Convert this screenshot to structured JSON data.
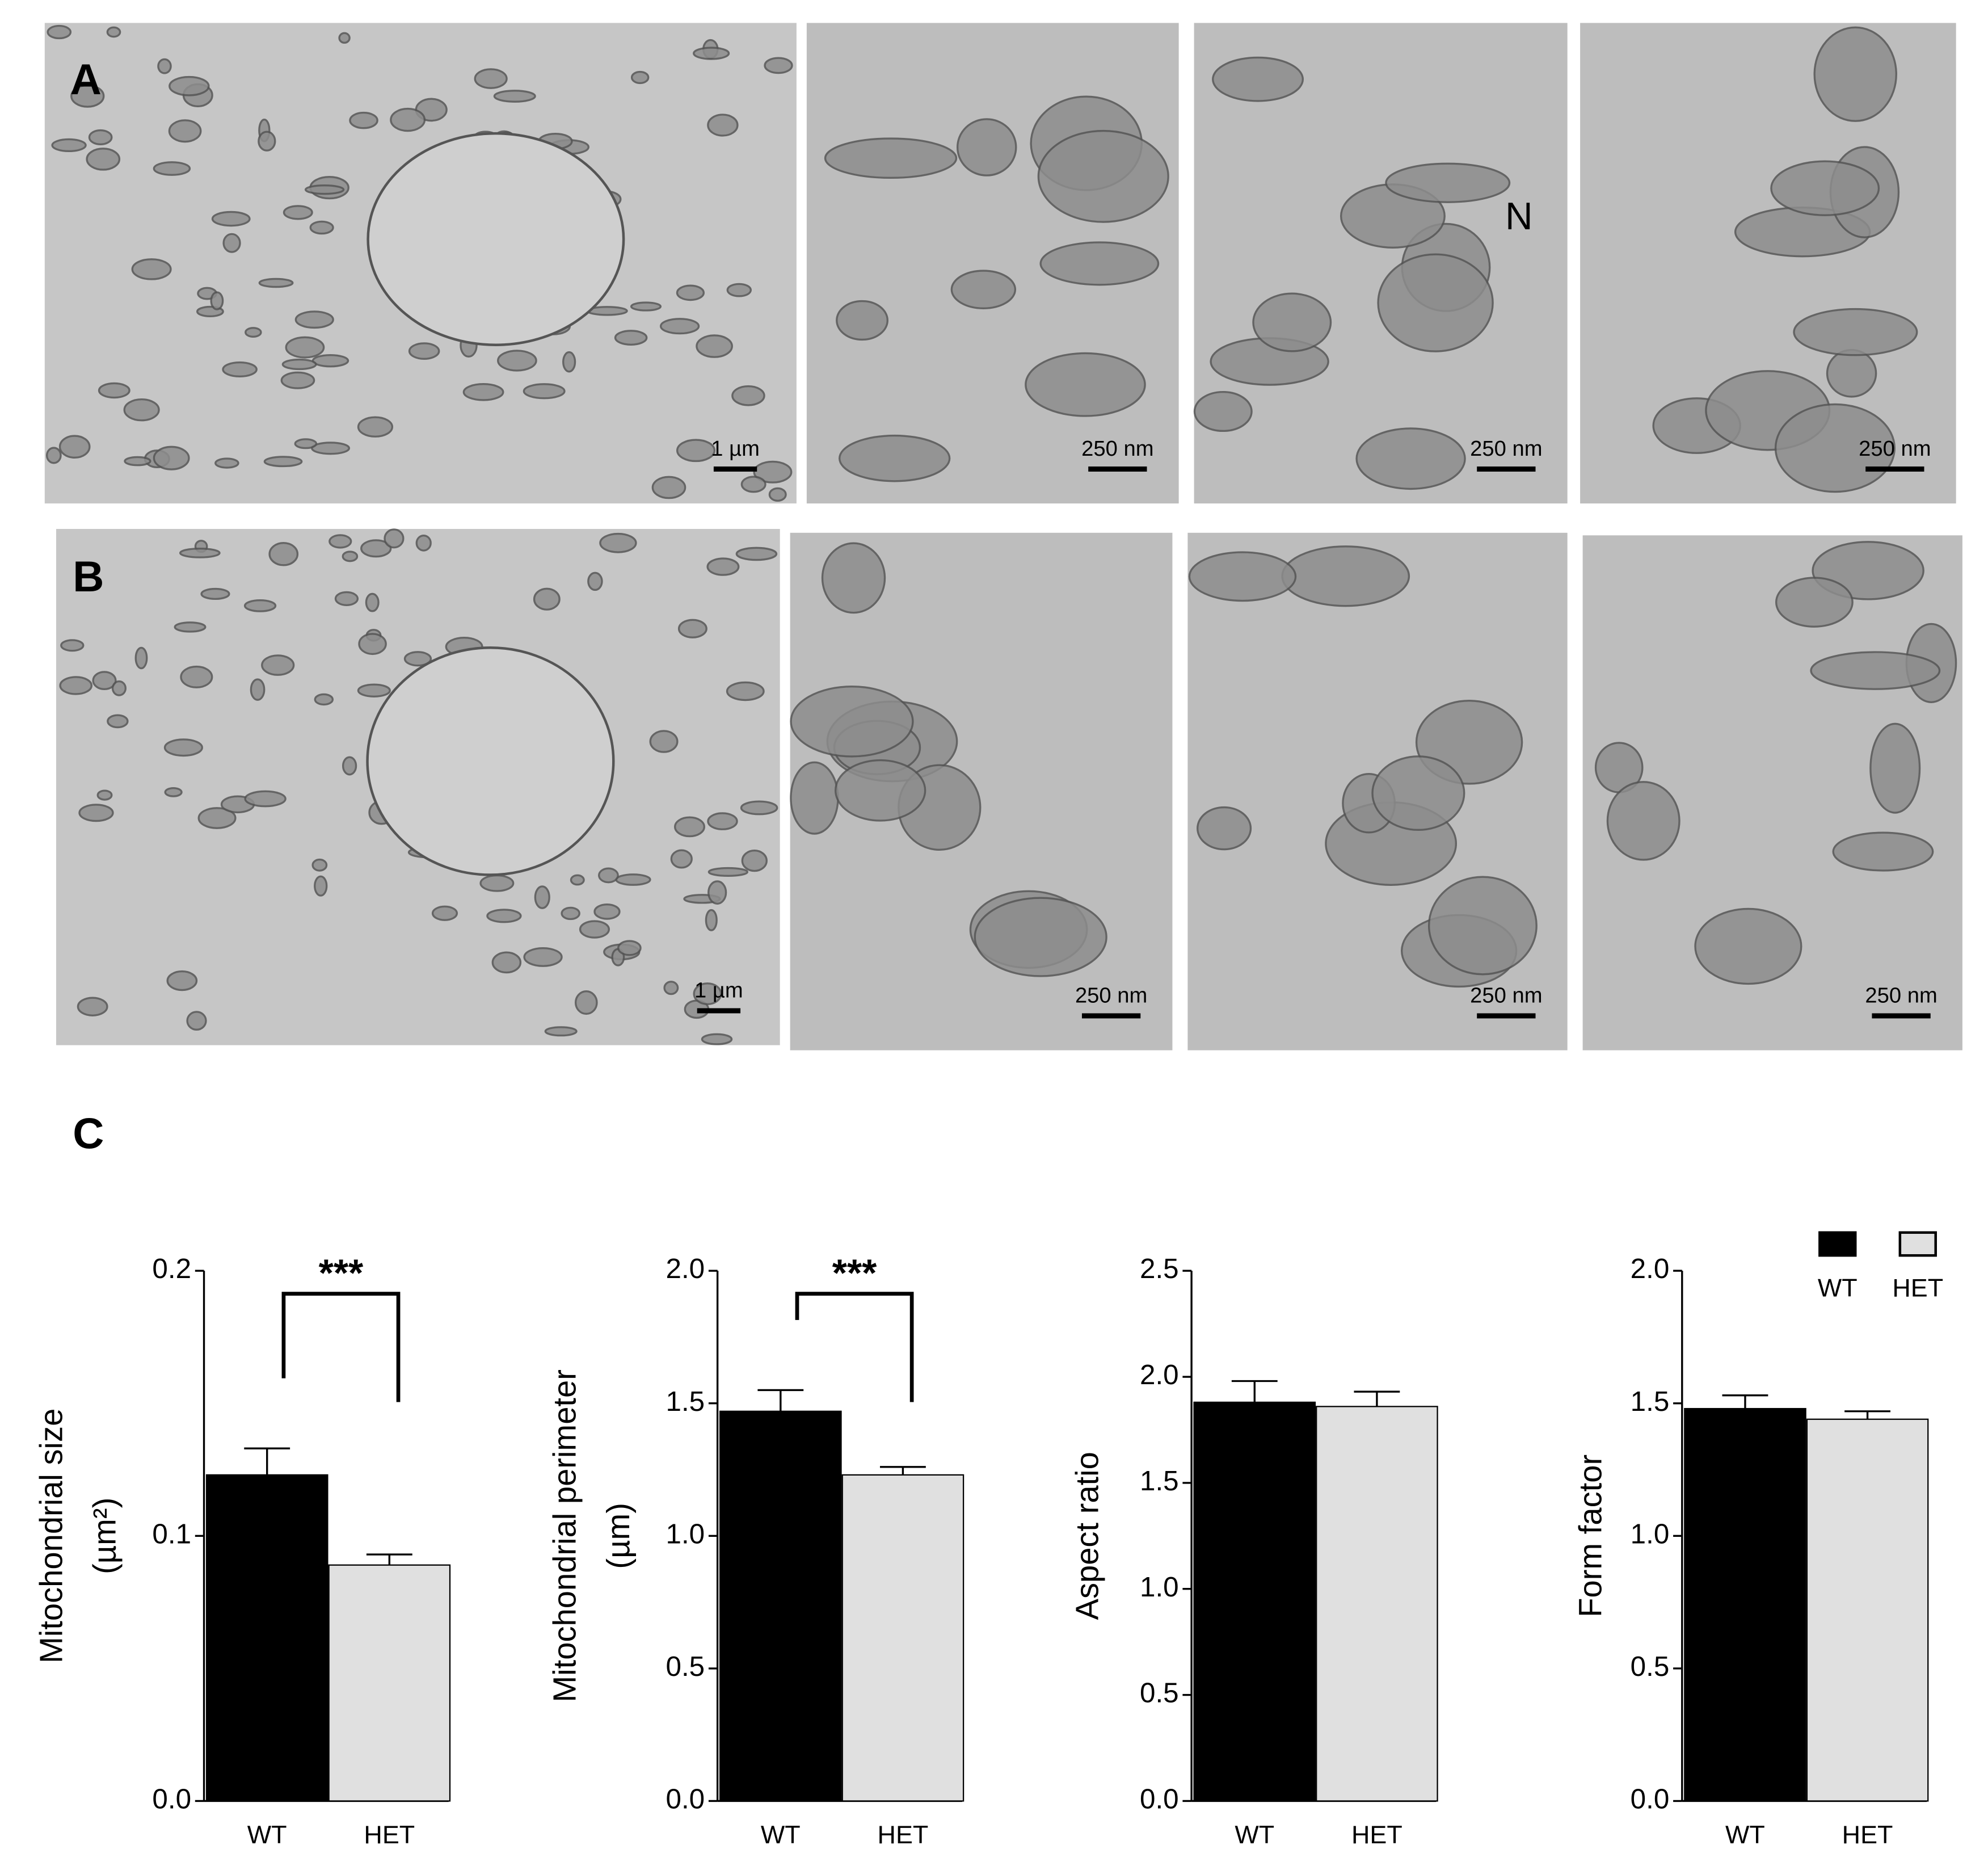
{
  "figure": {
    "panel_a": {
      "label": "A",
      "scale_bars": [
        "1 µm",
        "250 nm",
        "250 nm",
        "250 nm"
      ],
      "nucleus_label": "N"
    },
    "panel_b": {
      "label": "B",
      "scale_bars": [
        "1 µm",
        "250 nm",
        "250 nm",
        "250 nm"
      ]
    },
    "panel_c": {
      "label": "C"
    }
  },
  "chart_data": [
    {
      "type": "bar",
      "ylabel": [
        "Mitochondrial size",
        "(µm²)"
      ],
      "categories": [
        "WT",
        "HET"
      ],
      "values": [
        0.123,
        0.089
      ],
      "errors": [
        0.01,
        0.004
      ],
      "colors": [
        "#000000",
        "#e0e0e0"
      ],
      "ylim": [
        0,
        0.2
      ],
      "yticks": [
        {
          "value": 0,
          "label": "0.0"
        },
        0.1,
        0.2
      ],
      "significance": "***"
    },
    {
      "type": "bar",
      "ylabel": [
        "Mitochondrial perimeter",
        "(µm)"
      ],
      "categories": [
        "WT",
        "HET"
      ],
      "values": [
        1.47,
        1.23
      ],
      "errors": [
        0.08,
        0.03
      ],
      "colors": [
        "#000000",
        "#e0e0e0"
      ],
      "ylim": [
        0,
        2
      ],
      "yticks": [
        {
          "value": 0,
          "label": "0.0"
        },
        0.5,
        {
          "value": 1,
          "label": "1.0"
        },
        1.5,
        {
          "value": 2,
          "label": "2.0"
        }
      ],
      "significance": "***"
    },
    {
      "type": "bar",
      "ylabel": [
        "Aspect ratio"
      ],
      "categories": [
        "WT",
        "HET"
      ],
      "values": [
        1.88,
        1.86
      ],
      "errors": [
        0.1,
        0.07
      ],
      "colors": [
        "#000000",
        "#e0e0e0"
      ],
      "ylim": [
        0,
        2.5
      ],
      "yticks": [
        {
          "value": 0,
          "label": "0.0"
        },
        0.5,
        {
          "value": 1,
          "label": "1.0"
        },
        1.5,
        {
          "value": 2,
          "label": "2.0"
        },
        2.5
      ]
    },
    {
      "type": "bar",
      "ylabel": [
        "Form factor"
      ],
      "categories": [
        "WT",
        "HET"
      ],
      "values": [
        1.48,
        1.44
      ],
      "errors": [
        0.05,
        0.03
      ],
      "colors": [
        "#000000",
        "#e0e0e0"
      ],
      "ylim": [
        0,
        2
      ],
      "yticks": [
        {
          "value": 0,
          "label": "0.0"
        },
        0.5,
        {
          "value": 1,
          "label": "1.0"
        },
        1.5,
        {
          "value": 2,
          "label": "2.0"
        }
      ],
      "legend": [
        "WT",
        "HET"
      ]
    }
  ]
}
